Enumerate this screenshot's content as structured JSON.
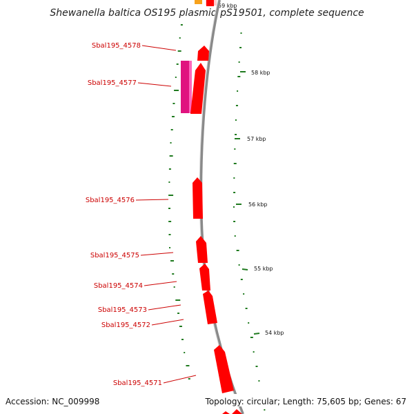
{
  "title": "Shewanella baltica OS195 plasmid pS19501, complete sequence",
  "accession": "Accession: NC_009998",
  "summary": "Topology: circular; Length: 75,605 bp; Genes: 67",
  "colors": {
    "gene": "#ff0000",
    "gene_alt": "#e0137f",
    "label": "#cc0000",
    "backbone": "#8a8a8a",
    "gc_tick": "#1e7a1e",
    "orange_feature": "#f7a21b"
  },
  "genes": [
    {
      "name": "Sbal195_4578"
    },
    {
      "name": "Sbal195_4577"
    },
    {
      "name": "Sbal195_4576"
    },
    {
      "name": "Sbal195_4575"
    },
    {
      "name": "Sbal195_4574"
    },
    {
      "name": "Sbal195_4573"
    },
    {
      "name": "Sbal195_4572"
    },
    {
      "name": "Sbal195_4571"
    }
  ],
  "kbp_ticks": [
    {
      "label": "58 kbp"
    },
    {
      "label": "57 kbp"
    },
    {
      "label": "56 kbp"
    },
    {
      "label": "55 kbp"
    },
    {
      "label": "54 kbp"
    }
  ]
}
